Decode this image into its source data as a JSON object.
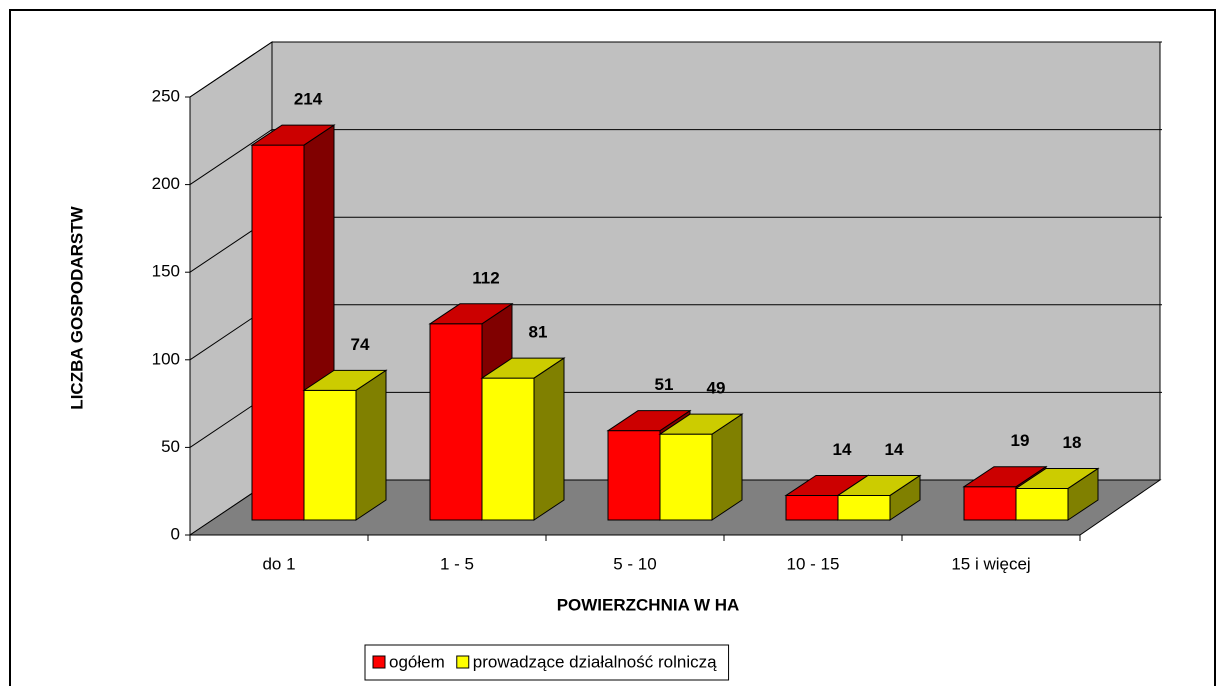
{
  "chart_data": {
    "type": "bar3d",
    "xlabel": "POWIERZCHNIA W HA",
    "ylabel": "LICZBA GOSPODARSTW",
    "categories": [
      "do 1",
      "1 - 5",
      "5 - 10",
      "10 - 15",
      "15 i więcej"
    ],
    "series": [
      {
        "name": "ogółem",
        "color": "#ff0000",
        "values": [
          214,
          112,
          51,
          14,
          19
        ]
      },
      {
        "name": "prowadzące działalność rolniczą",
        "color": "#ffff00",
        "values": [
          74,
          81,
          49,
          14,
          18
        ]
      }
    ],
    "ylim": [
      0,
      250
    ],
    "yticks": [
      0,
      50,
      100,
      150,
      200,
      250
    ],
    "grid": true,
    "legend": "bottom"
  }
}
